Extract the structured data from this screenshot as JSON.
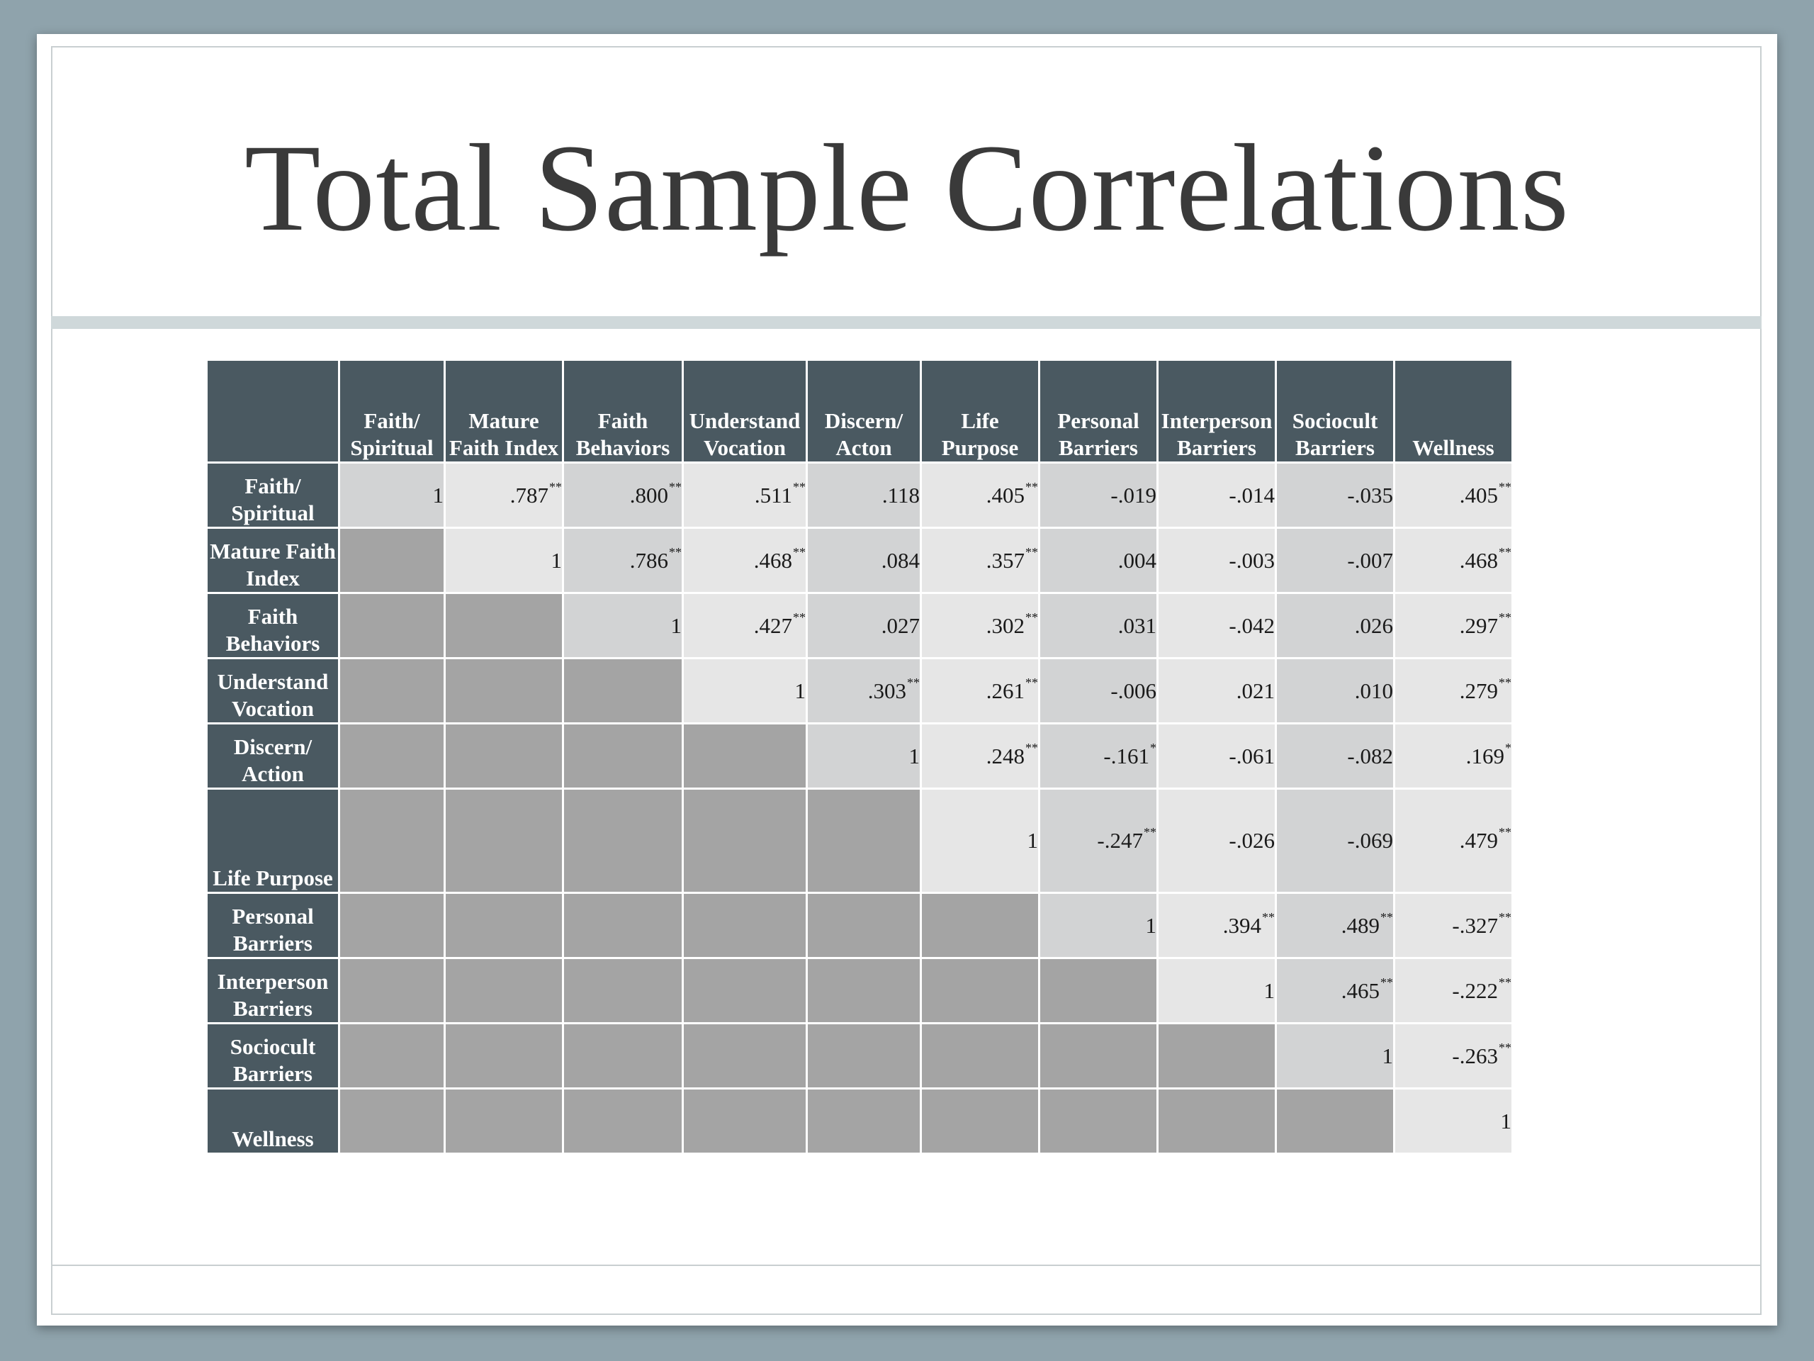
{
  "slide": {
    "title": "Total Sample Correlations"
  },
  "table": {
    "columns": [
      "Faith/ Spiritual",
      "Mature Faith Index",
      "Faith Behaviors",
      "Understand Vocation",
      "Discern/ Acton",
      "Life Purpose",
      "Personal Barriers",
      "Interperson Barriers",
      "Sociocult Barriers",
      "Wellness"
    ],
    "rows": [
      {
        "label": "Faith/ Spiritual",
        "cells": [
          {
            "v": "1",
            "s": ""
          },
          {
            "v": ".787",
            "s": "**"
          },
          {
            "v": ".800",
            "s": "**"
          },
          {
            "v": ".511",
            "s": "**"
          },
          {
            "v": ".118",
            "s": ""
          },
          {
            "v": ".405",
            "s": "**"
          },
          {
            "v": "-.019",
            "s": ""
          },
          {
            "v": "-.014",
            "s": ""
          },
          {
            "v": "-.035",
            "s": ""
          },
          {
            "v": ".405",
            "s": "**"
          }
        ]
      },
      {
        "label": "Mature Faith Index",
        "cells": [
          {
            "v": "1",
            "s": ""
          },
          {
            "v": ".786",
            "s": "**"
          },
          {
            "v": ".468",
            "s": "**"
          },
          {
            "v": ".084",
            "s": ""
          },
          {
            "v": ".357",
            "s": "**"
          },
          {
            "v": ".004",
            "s": ""
          },
          {
            "v": "-.003",
            "s": ""
          },
          {
            "v": "-.007",
            "s": ""
          },
          {
            "v": ".468",
            "s": "**"
          }
        ]
      },
      {
        "label": "Faith Behaviors",
        "cells": [
          {
            "v": "1",
            "s": ""
          },
          {
            "v": ".427",
            "s": "**"
          },
          {
            "v": ".027",
            "s": ""
          },
          {
            "v": ".302",
            "s": "**"
          },
          {
            "v": ".031",
            "s": ""
          },
          {
            "v": "-.042",
            "s": ""
          },
          {
            "v": ".026",
            "s": ""
          },
          {
            "v": ".297",
            "s": "**"
          }
        ]
      },
      {
        "label": "Understand Vocation",
        "cells": [
          {
            "v": "1",
            "s": ""
          },
          {
            "v": ".303",
            "s": "**"
          },
          {
            "v": ".261",
            "s": "**"
          },
          {
            "v": "-.006",
            "s": ""
          },
          {
            "v": ".021",
            "s": ""
          },
          {
            "v": ".010",
            "s": ""
          },
          {
            "v": ".279",
            "s": "**"
          }
        ]
      },
      {
        "label": "Discern/ Action",
        "cells": [
          {
            "v": "1",
            "s": ""
          },
          {
            "v": ".248",
            "s": "**"
          },
          {
            "v": "-.161",
            "s": "*"
          },
          {
            "v": "-.061",
            "s": ""
          },
          {
            "v": "-.082",
            "s": ""
          },
          {
            "v": ".169",
            "s": "*"
          }
        ]
      },
      {
        "label": "Life Purpose",
        "cells": [
          {
            "v": "1",
            "s": ""
          },
          {
            "v": "-.247",
            "s": "**"
          },
          {
            "v": "-.026",
            "s": ""
          },
          {
            "v": "-.069",
            "s": ""
          },
          {
            "v": ".479",
            "s": "**"
          }
        ]
      },
      {
        "label": "Personal Barriers",
        "cells": [
          {
            "v": "1",
            "s": ""
          },
          {
            "v": ".394",
            "s": "**"
          },
          {
            "v": ".489",
            "s": "**"
          },
          {
            "v": "-.327",
            "s": "**"
          }
        ]
      },
      {
        "label": "Interperson Barriers",
        "cells": [
          {
            "v": "1",
            "s": ""
          },
          {
            "v": ".465",
            "s": "**"
          },
          {
            "v": "-.222",
            "s": "**"
          }
        ]
      },
      {
        "label": "Sociocult Barriers",
        "cells": [
          {
            "v": "1",
            "s": ""
          },
          {
            "v": "-.263",
            "s": "**"
          }
        ]
      },
      {
        "label": "Wellness",
        "cells": [
          {
            "v": "1",
            "s": ""
          }
        ]
      }
    ]
  }
}
